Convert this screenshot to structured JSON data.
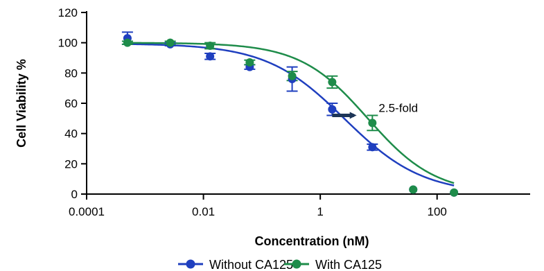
{
  "chart_data": {
    "type": "scatter",
    "xlabel": "Concentration (nM)",
    "ylabel": "Cell Viability %",
    "x_scale": "log",
    "xlim": [
      0.0001,
      1000
    ],
    "ylim": [
      0,
      120
    ],
    "x_ticks": [
      0.0001,
      0.01,
      1,
      100
    ],
    "x_tick_labels": [
      "0.0001",
      "0.01",
      "1",
      "100"
    ],
    "y_ticks": [
      0,
      20,
      40,
      60,
      80,
      100,
      120
    ],
    "y_tick_labels": [
      "0",
      "20",
      "40",
      "60",
      "80",
      "100",
      "120"
    ],
    "legend_position": "bottom",
    "series": [
      {
        "name": "Without CA125",
        "color": "#1f3fbf",
        "x": [
          0.0005,
          0.0027,
          0.013,
          0.062,
          0.33,
          1.6,
          7.8,
          39,
          195
        ],
        "y": [
          103,
          99,
          91,
          84,
          76,
          56,
          31,
          3,
          1
        ],
        "error": [
          4,
          1,
          2,
          1.5,
          8,
          4,
          2,
          0,
          0
        ],
        "fit": {
          "top": 99.5,
          "bottom": 0,
          "ic50": 2.6,
          "hill": 0.65
        }
      },
      {
        "name": "With CA125",
        "color": "#1e8c4a",
        "x": [
          0.0005,
          0.0027,
          0.013,
          0.062,
          0.33,
          1.6,
          7.8,
          39,
          195
        ],
        "y": [
          100,
          100,
          98,
          87,
          78,
          74,
          47,
          3,
          1
        ],
        "error": [
          1,
          1,
          2,
          1.5,
          3,
          4,
          5,
          0,
          0
        ],
        "fit": {
          "top": 100,
          "bottom": 0,
          "ic50": 6.5,
          "hill": 0.75
        }
      }
    ],
    "annotations": [
      {
        "text": "2.5-fold",
        "x": 10,
        "y": 57
      }
    ],
    "arrow": {
      "from": [
        1.6,
        52
      ],
      "to": [
        4.2,
        52
      ],
      "color": "#1d3557"
    }
  }
}
